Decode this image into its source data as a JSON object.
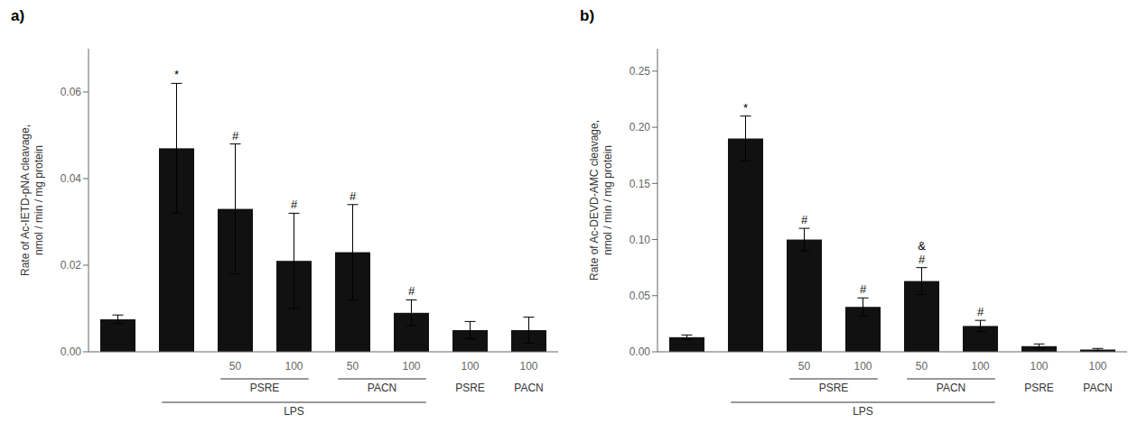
{
  "chart_data": [
    {
      "type": "bar",
      "title": "a)",
      "ylabel": "Rate of Ac-IETD-pNA cleavage,\nnmol / min / mg protein",
      "categories": [
        null,
        null,
        "50",
        "100",
        "50",
        "100",
        "100",
        "100"
      ],
      "category_groups": [
        [
          null,
          null,
          "PSRE",
          "PSRE",
          "PACN",
          "PACN",
          "PSRE",
          "PACN"
        ],
        [
          null,
          "LPS",
          "LPS",
          "LPS",
          "LPS",
          "LPS",
          null,
          null
        ]
      ],
      "values": [
        0.0075,
        0.047,
        0.033,
        0.021,
        0.023,
        0.009,
        0.005,
        0.005
      ],
      "errors": [
        0.001,
        0.015,
        0.015,
        0.011,
        0.011,
        0.003,
        0.002,
        0.003
      ],
      "significance": [
        null,
        "*",
        "#",
        "#",
        "#",
        "#",
        null,
        null
      ],
      "color": "#111111",
      "ylim": [
        0,
        0.07
      ],
      "yticks": [
        {
          "value": 0,
          "label": "0.00"
        },
        0.02,
        0.04,
        0.06
      ],
      "grid": false
    },
    {
      "type": "bar",
      "title": "b)",
      "ylabel": "Rate of Ac-DEVD-AMC cleavage,\nnmol / min / mg protein",
      "categories": [
        null,
        null,
        "50",
        "100",
        "50",
        "100",
        "100",
        "100"
      ],
      "category_groups": [
        [
          null,
          null,
          "PSRE",
          "PSRE",
          "PACN",
          "PACN",
          "PSRE",
          "PACN"
        ],
        [
          null,
          "LPS",
          "LPS",
          "LPS",
          "LPS",
          "LPS",
          null,
          null
        ]
      ],
      "values": [
        0.013,
        0.19,
        0.1,
        0.04,
        0.063,
        0.023,
        0.005,
        0.002
      ],
      "errors": [
        0.002,
        0.02,
        0.01,
        0.008,
        0.012,
        0.005,
        0.002,
        0.001
      ],
      "significance": [
        null,
        "*",
        "#",
        "#",
        [
          "&",
          "#"
        ],
        "#",
        null,
        null
      ],
      "color": "#111111",
      "ylim": [
        0,
        0.27
      ],
      "yticks": [
        {
          "value": 0,
          "label": "0.00"
        },
        0.05,
        {
          "value": 0.1,
          "label": "0.10"
        },
        0.15,
        {
          "value": 0.2,
          "label": "0.20"
        },
        0.25
      ],
      "grid": false
    }
  ]
}
